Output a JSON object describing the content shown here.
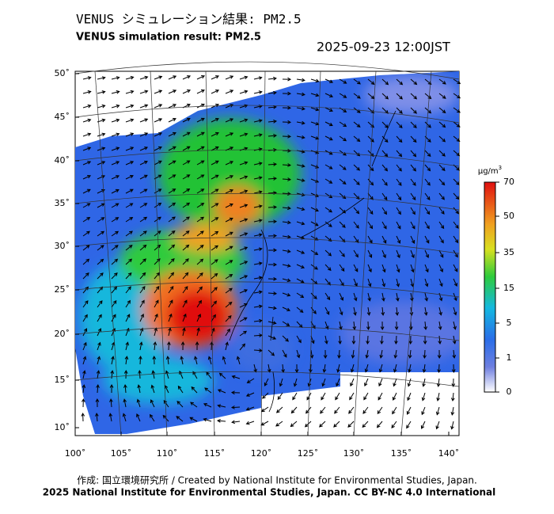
{
  "header": {
    "title_jp": "VENUS シミュレーション結果: PM2.5",
    "title_en": "VENUS simulation result: PM2.5",
    "timestamp": "2025-09-23 12:00JST"
  },
  "map": {
    "lat_ticks": [
      "50˚",
      "45˚",
      "40˚",
      "35˚",
      "30˚",
      "25˚",
      "20˚",
      "15˚",
      "10˚"
    ],
    "lon_ticks": [
      "100˚",
      "105˚",
      "110˚",
      "115˚",
      "120˚",
      "125˚",
      "130˚",
      "135˚",
      "140˚"
    ]
  },
  "colorbar": {
    "unit": "μg/m",
    "unit_sup": "3",
    "ticks": [
      "70",
      "50",
      "35",
      "15",
      "5",
      "1",
      "0"
    ]
  },
  "footer": {
    "credit": "作成: 国立環境研究所 / Created by National Institute for Environmental Studies, Japan.",
    "license": "2025 National Institute for Environmental Studies, Japan. CC BY-NC 4.0 International"
  }
}
